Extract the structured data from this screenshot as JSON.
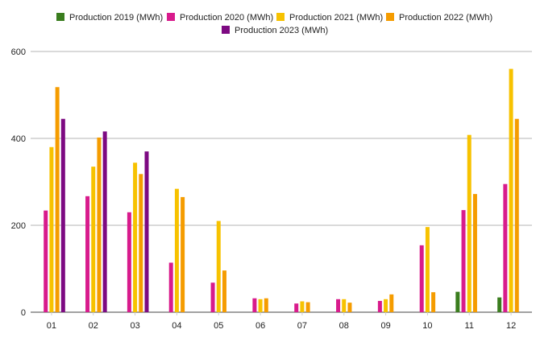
{
  "chart_data": {
    "type": "bar",
    "categories": [
      "01",
      "02",
      "03",
      "04",
      "05",
      "06",
      "07",
      "08",
      "09",
      "10",
      "11",
      "12"
    ],
    "series": [
      {
        "name": "Production 2019 (MWh)",
        "color": "#3a7d1e",
        "values": [
          null,
          null,
          null,
          null,
          null,
          null,
          null,
          null,
          null,
          null,
          47,
          34
        ]
      },
      {
        "name": "Production 2020 (MWh)",
        "color": "#d81b8c",
        "values": [
          234,
          267,
          230,
          114,
          68,
          32,
          20,
          30,
          26,
          154,
          235,
          295
        ]
      },
      {
        "name": "Production 2021 (MWh)",
        "color": "#f7c200",
        "values": [
          380,
          335,
          344,
          284,
          210,
          30,
          25,
          30,
          30,
          196,
          408,
          560
        ]
      },
      {
        "name": "Production 2022 (MWh)",
        "color": "#f59c00",
        "values": [
          518,
          402,
          318,
          265,
          96,
          32,
          23,
          22,
          41,
          46,
          272,
          445
        ]
      },
      {
        "name": "Production 2023 (MWh)",
        "color": "#7d0a82",
        "values": [
          445,
          416,
          370,
          null,
          null,
          null,
          null,
          null,
          null,
          null,
          null,
          null
        ]
      }
    ],
    "ylim": [
      0,
      600
    ],
    "yticks": [
      0,
      200,
      400,
      600
    ],
    "grid": true,
    "legend_position": "top"
  }
}
